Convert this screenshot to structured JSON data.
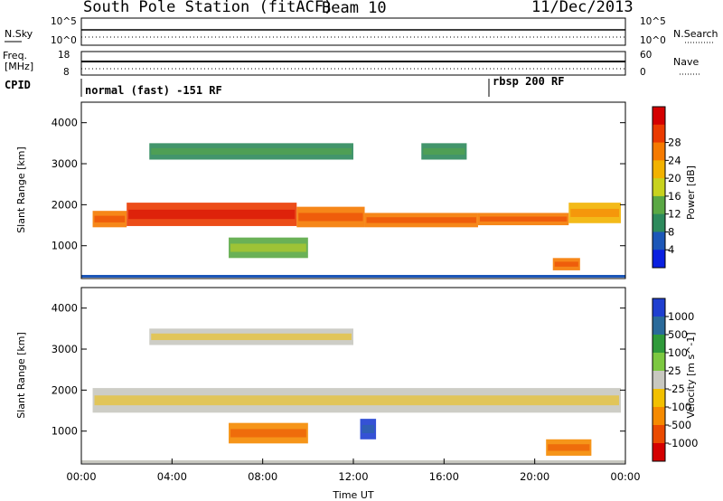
{
  "header": {
    "station": "South Pole Station (fitACF)",
    "beam": "Beam 10",
    "date": "11/Dec/2013"
  },
  "top_panels": {
    "nsky_label": "N.Sky",
    "nsky_ticks": [
      "10^5",
      "10^0"
    ],
    "nsearch_label": "N.Search",
    "nsearch_ticks": [
      "10^5",
      "10^0"
    ],
    "freq_label": "Freq.",
    "freq_unit": "[MHz]",
    "freq_ticks": [
      "18",
      "8"
    ],
    "nave_label": "Nave",
    "nave_ticks": [
      "60",
      "0"
    ],
    "cpid_label": "CPID",
    "cpid_segments": [
      "normal (fast) -151 RF",
      "rbsp 200 RF"
    ]
  },
  "chart_data": [
    {
      "type": "heatmap",
      "name": "power-panel",
      "ylabel": "Slant Range [km]",
      "yticks": [
        "1000",
        "2000",
        "3000",
        "4000"
      ],
      "ylim": [
        200,
        4500
      ],
      "xlim": [
        0,
        24
      ],
      "colorbar_label": "Power [dB]",
      "colorbar_ticks": [
        "4",
        "8",
        "12",
        "16",
        "20",
        "24",
        "28"
      ],
      "colors": [
        "#0a20e0",
        "#1c57b8",
        "#2d8a5c",
        "#5aa844",
        "#c8d21e",
        "#f2b200",
        "#f57a00",
        "#ea3a00",
        "#d40000"
      ],
      "bands": [
        {
          "t0": 0.5,
          "t1": 2.0,
          "r0": 1450,
          "r1": 1850,
          "level": 6
        },
        {
          "t0": 2.0,
          "t1": 9.5,
          "r0": 1480,
          "r1": 2050,
          "level": 7
        },
        {
          "t0": 9.5,
          "t1": 12.5,
          "r0": 1450,
          "r1": 1950,
          "level": 6
        },
        {
          "t0": 12.5,
          "t1": 17.5,
          "r0": 1450,
          "r1": 1800,
          "level": 6
        },
        {
          "t0": 17.5,
          "t1": 21.5,
          "r0": 1500,
          "r1": 1800,
          "level": 6
        },
        {
          "t0": 21.5,
          "t1": 23.8,
          "r0": 1550,
          "r1": 2050,
          "level": 5
        },
        {
          "t0": 3.0,
          "t1": 12.0,
          "r0": 3100,
          "r1": 3500,
          "level": 2
        },
        {
          "t0": 15.0,
          "t1": 17.0,
          "r0": 3100,
          "r1": 3500,
          "level": 2
        },
        {
          "t0": 6.5,
          "t1": 10.0,
          "r0": 700,
          "r1": 1200,
          "level": 3
        },
        {
          "t0": 20.8,
          "t1": 22.0,
          "r0": 400,
          "r1": 700,
          "level": 6
        }
      ]
    },
    {
      "type": "heatmap",
      "name": "velocity-panel",
      "ylabel": "Slant Range [km]",
      "yticks": [
        "1000",
        "2000",
        "3000",
        "4000"
      ],
      "ylim": [
        200,
        4500
      ],
      "xlim": [
        0,
        24
      ],
      "xticks": [
        "00:00",
        "04:00",
        "08:00",
        "12:00",
        "16:00",
        "20:00",
        "00:00"
      ],
      "xlabel": "Time UT",
      "colorbar_label": "Velocity [m s^-1]",
      "colorbar_ticks": [
        "1000",
        "500",
        "100",
        "25",
        "-25",
        "-100",
        "-500",
        "-1000"
      ],
      "colors": [
        "#1f3fd0",
        "#2a6a9a",
        "#2f9a3a",
        "#7cc840",
        "#c8c8c0",
        "#f2c000",
        "#f58a00",
        "#ea4a00",
        "#d40000"
      ],
      "bands": [
        {
          "t0": 0.5,
          "t1": 23.8,
          "r0": 1450,
          "r1": 2050,
          "level": 4
        },
        {
          "t0": 3.0,
          "t1": 12.0,
          "r0": 3100,
          "r1": 3500,
          "level": 4
        },
        {
          "t0": 6.5,
          "t1": 10.0,
          "r0": 700,
          "r1": 1200,
          "level": 6
        },
        {
          "t0": 12.3,
          "t1": 13.0,
          "r0": 800,
          "r1": 1300,
          "level": 0
        },
        {
          "t0": 20.5,
          "t1": 22.5,
          "r0": 400,
          "r1": 800,
          "level": 6
        }
      ]
    }
  ]
}
